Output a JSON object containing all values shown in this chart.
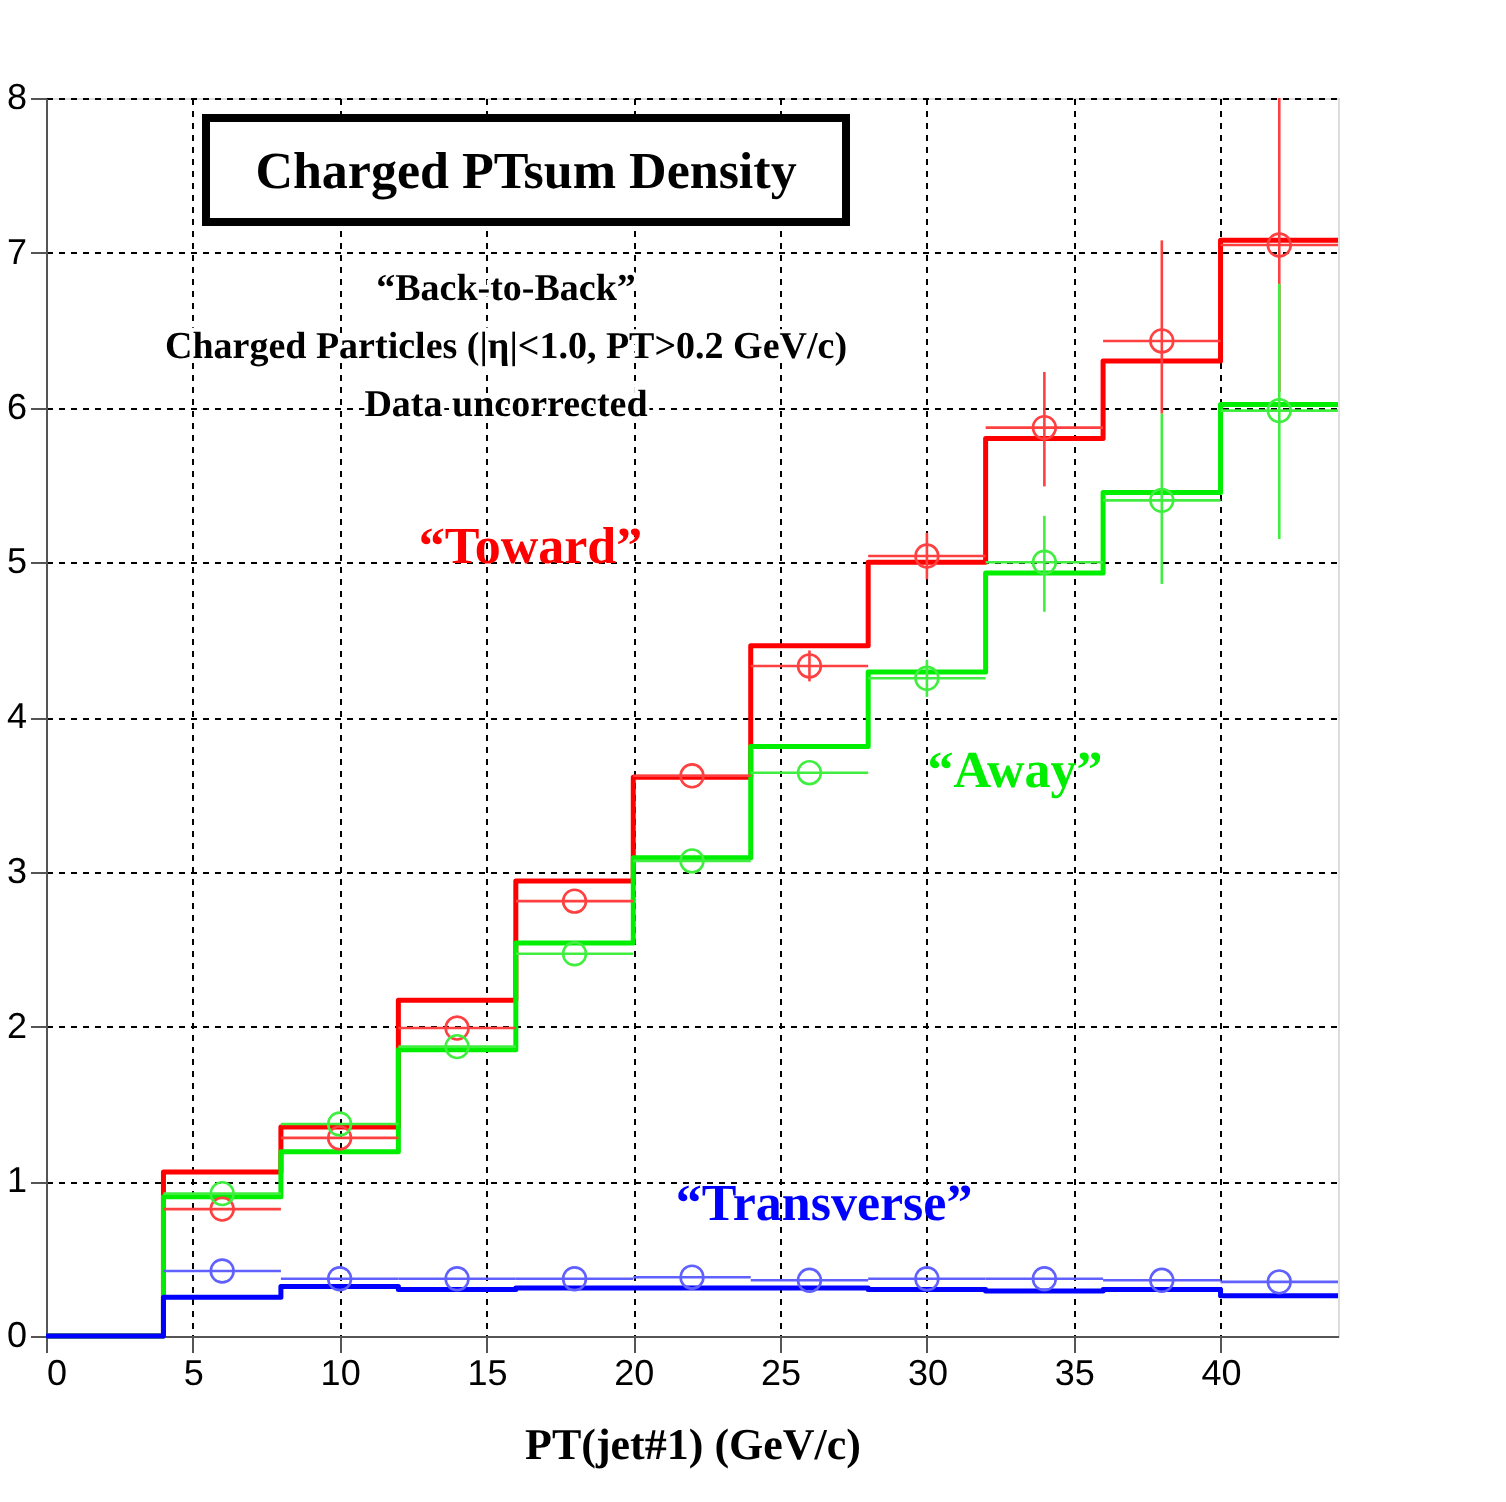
{
  "chart_data": {
    "type": "histogram",
    "title": "Charged PTsum Density",
    "xlabel": "PT(jet#1) (GeV/c)",
    "annotations": [
      "“Back-to-Back”",
      "Charged Particles (|η|<1.0, PT>0.2 GeV/c)",
      "Data uncorrected"
    ],
    "bins": [
      0,
      4,
      8,
      12,
      16,
      20,
      24,
      28,
      32,
      36,
      40,
      44
    ],
    "xlim": [
      0,
      44
    ],
    "ylim": [
      0,
      8
    ],
    "xticks": [
      0,
      5,
      10,
      15,
      20,
      25,
      30,
      35,
      40
    ],
    "yticks": [
      0,
      1,
      2,
      3,
      4,
      5,
      6,
      7,
      8
    ],
    "grid": true,
    "marker": "circle",
    "series": [
      {
        "name": "“Toward”",
        "color": "#ff0000",
        "values": [
          0,
          1.06,
          1.35,
          2.17,
          2.94,
          3.61,
          4.46,
          5.0,
          5.8,
          6.3,
          7.08
        ]
      },
      {
        "name": "“Away”",
        "color": "#00ee00",
        "values": [
          0,
          0.9,
          1.19,
          1.85,
          2.54,
          3.09,
          3.81,
          4.29,
          4.93,
          5.45,
          6.02
        ]
      },
      {
        "name": "“Transverse”",
        "color": "#0000ff",
        "values": [
          0,
          0.25,
          0.32,
          0.3,
          0.31,
          0.31,
          0.31,
          0.3,
          0.29,
          0.3,
          0.26
        ]
      },
      {
        "type": "scatter",
        "color": "#ff4040",
        "x": [
          6,
          10,
          14,
          18,
          22,
          26,
          30,
          34,
          38,
          42
        ],
        "values": [
          0.82,
          1.28,
          1.99,
          2.81,
          3.62,
          4.33,
          5.04,
          5.87,
          6.43,
          7.05
        ],
        "xerrors": [
          2,
          2,
          2,
          2,
          2,
          2,
          2,
          2,
          2,
          2
        ],
        "errors": [
          null,
          null,
          null,
          null,
          null,
          0.1,
          0.15,
          [
            5.49,
            6.23
          ],
          [
            5.96,
            7.08
          ],
          [
            6.1,
            8.0
          ]
        ]
      },
      {
        "type": "scatter",
        "color": "#40ee40",
        "x": [
          6,
          10,
          14,
          18,
          22,
          26,
          30,
          34,
          38,
          42
        ],
        "values": [
          0.92,
          1.37,
          1.87,
          2.47,
          3.07,
          3.64,
          4.25,
          5.0,
          5.4,
          5.98
        ],
        "xerrors": [
          2,
          2,
          2,
          2,
          2,
          2,
          2,
          2,
          2,
          2
        ],
        "errors": [
          null,
          null,
          null,
          null,
          null,
          null,
          0.12,
          [
            4.68,
            5.3
          ],
          [
            4.86,
            5.96
          ],
          [
            5.15,
            6.8
          ]
        ]
      },
      {
        "type": "scatter",
        "color": "#6060ff",
        "x": [
          6,
          10,
          14,
          18,
          22,
          26,
          30,
          34,
          38,
          42
        ],
        "values": [
          0.42,
          0.37,
          0.37,
          0.37,
          0.38,
          0.36,
          0.37,
          0.37,
          0.36,
          0.35
        ],
        "xerrors": [
          2,
          2,
          2,
          2,
          2,
          2,
          2,
          2,
          2,
          2
        ]
      }
    ]
  }
}
